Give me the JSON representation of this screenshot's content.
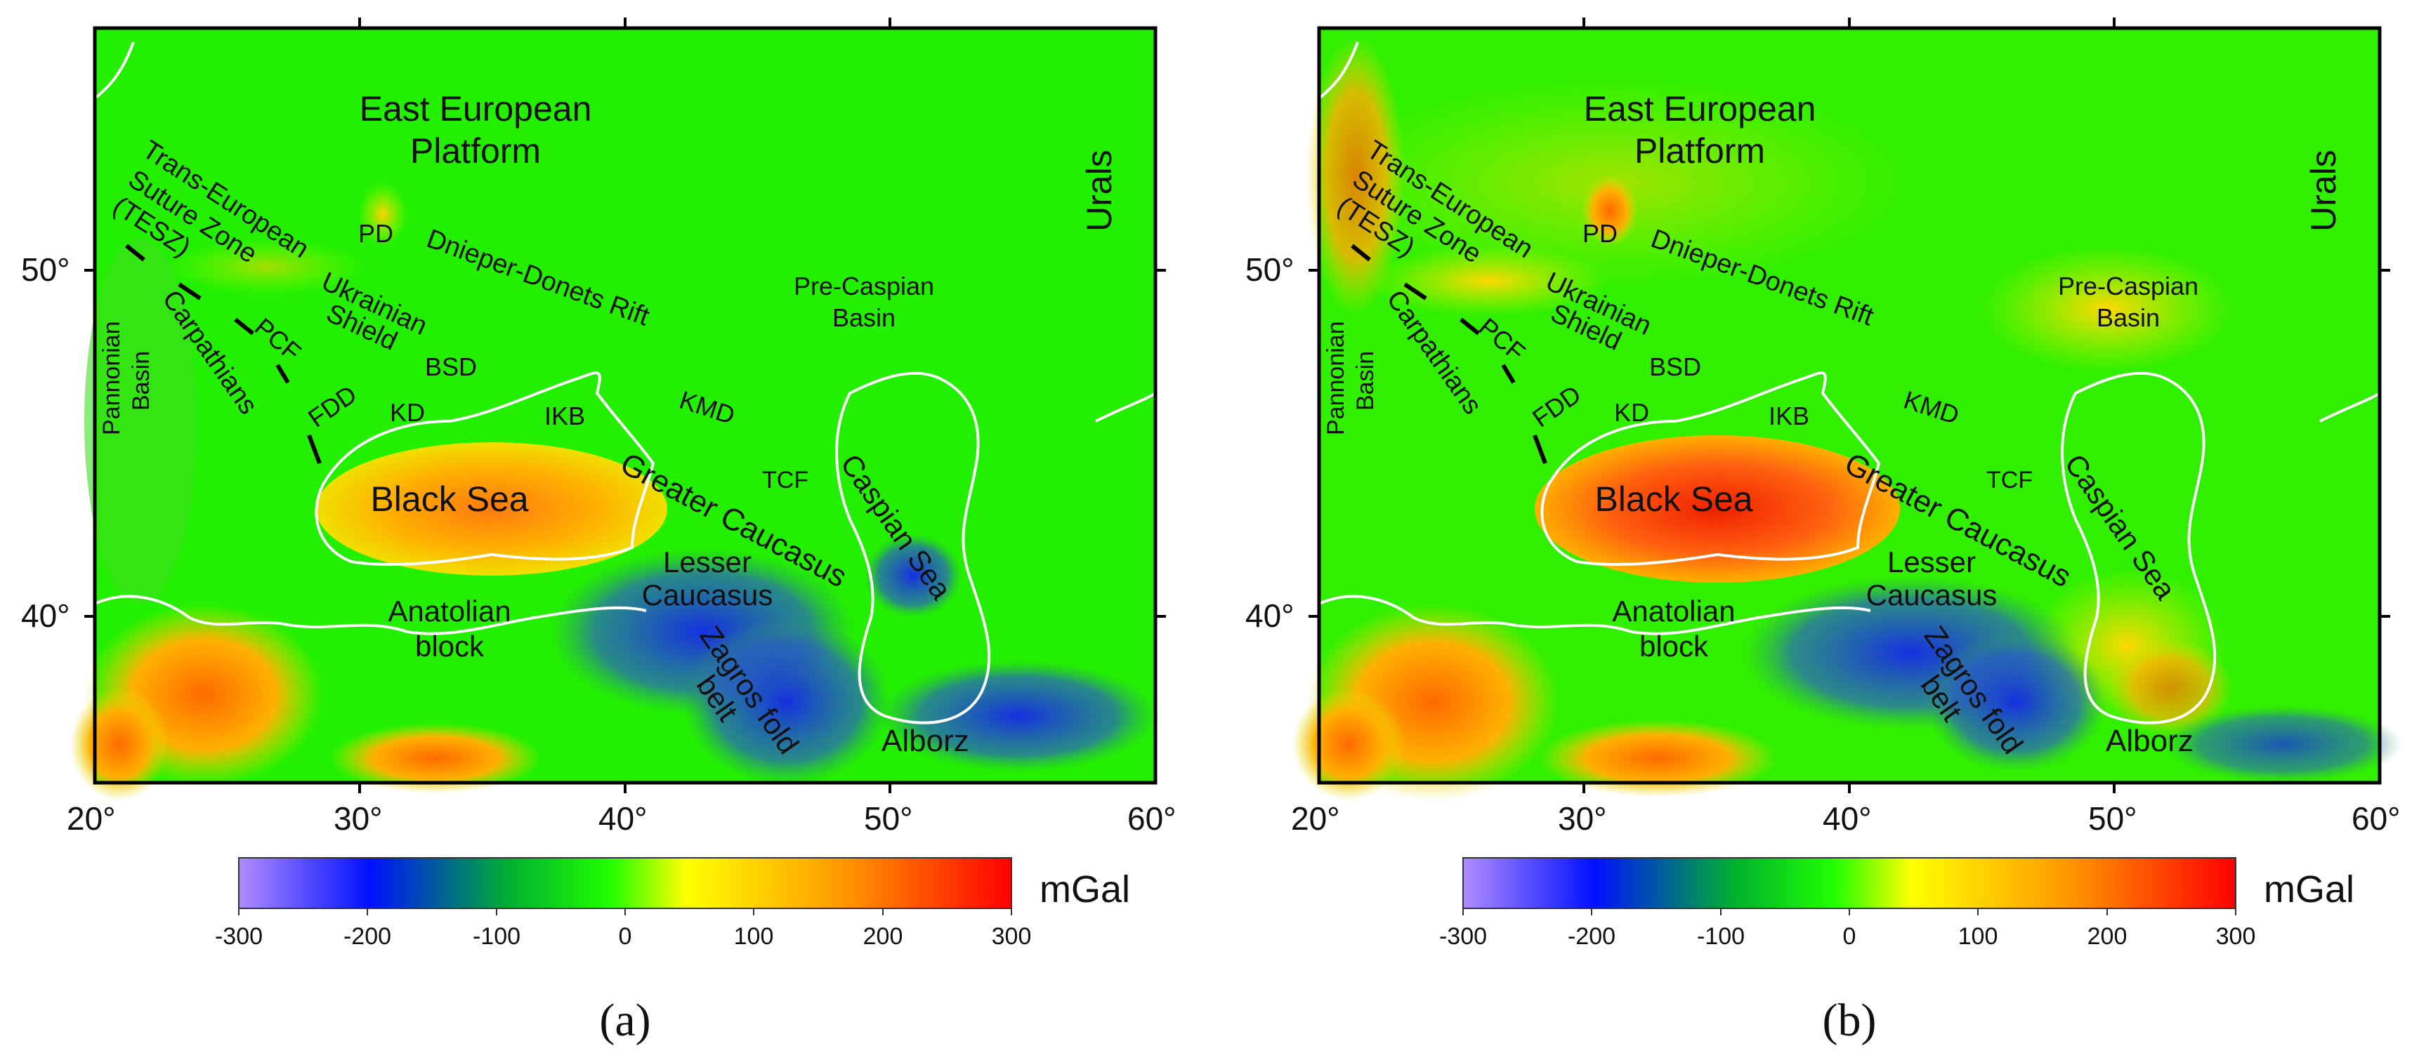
{
  "panels": [
    {
      "caption": "(a)",
      "colorbar_unit": "mGal",
      "colorbar_ticks": [
        "-300",
        "-200",
        "-100",
        "0",
        "100",
        "200",
        "300"
      ],
      "lon_ticks": [
        "20°",
        "30°",
        "40°",
        "50°",
        "60°"
      ],
      "lat_ticks": [
        "50°",
        "40°"
      ],
      "labels": {
        "eep1": "East European",
        "eep2": "Platform",
        "urals": "Urals",
        "tesz1": "Trans-European",
        "tesz2": "Suture Zone",
        "tesz3": "(TESZ)",
        "pd": "PD",
        "ddr": "Dnieper-Donets Rift",
        "pcb1": "Pre-Caspian",
        "pcb2": "Basin",
        "us1": "Ukrainian",
        "us2": "Shield",
        "carp": "Carpathians",
        "pcf": "PCF",
        "pb1": "Pannonian",
        "pb2": "Basin",
        "bsd": "BSD",
        "fdd": "FDD",
        "kd": "KD",
        "ikb": "IKB",
        "kmd": "KMD",
        "tcf": "TCF",
        "caspian": "Caspian Sea",
        "gc": "Greater Caucasus",
        "bs": "Black Sea",
        "lc1": "Lesser",
        "lc2": "Caucasus",
        "ab1": "Anatolian",
        "ab2": "block",
        "zf1": "Zagros fold",
        "zf2": "belt",
        "alborz": "Alborz"
      }
    },
    {
      "caption": "(b)",
      "colorbar_unit": "mGal",
      "colorbar_ticks": [
        "-300",
        "-200",
        "-100",
        "0",
        "100",
        "200",
        "300"
      ],
      "lon_ticks": [
        "20°",
        "30°",
        "40°",
        "50°",
        "60°"
      ],
      "lat_ticks": [
        "50°",
        "40°"
      ],
      "labels": {
        "eep1": "East European",
        "eep2": "Platform",
        "urals": "Urals",
        "tesz1": "Trans-European",
        "tesz2": "Suture Zone",
        "tesz3": "(TESZ)",
        "pd": "PD",
        "ddr": "Dnieper-Donets Rift",
        "pcb1": "Pre-Caspian",
        "pcb2": "Basin",
        "us1": "Ukrainian",
        "us2": "Shield",
        "carp": "Carpathians",
        "pcf": "PCF",
        "pb1": "Pannonian",
        "pb2": "Basin",
        "bsd": "BSD",
        "fdd": "FDD",
        "kd": "KD",
        "ikb": "IKB",
        "kmd": "KMD",
        "tcf": "TCF",
        "caspian": "Caspian Sea",
        "gc": "Greater Caucasus",
        "bs": "Black Sea",
        "lc1": "Lesser",
        "lc2": "Caucasus",
        "ab1": "Anatolian",
        "ab2": "block",
        "zf1": "Zagros fold",
        "zf2": "belt",
        "alborz": "Alborz"
      }
    }
  ],
  "colors": {
    "scale": [
      "#a070ff",
      "#0010ff",
      "#00c000",
      "#20ff00",
      "#ffff00",
      "#ff9900",
      "#ff0000"
    ],
    "coast": "#ffffff"
  }
}
